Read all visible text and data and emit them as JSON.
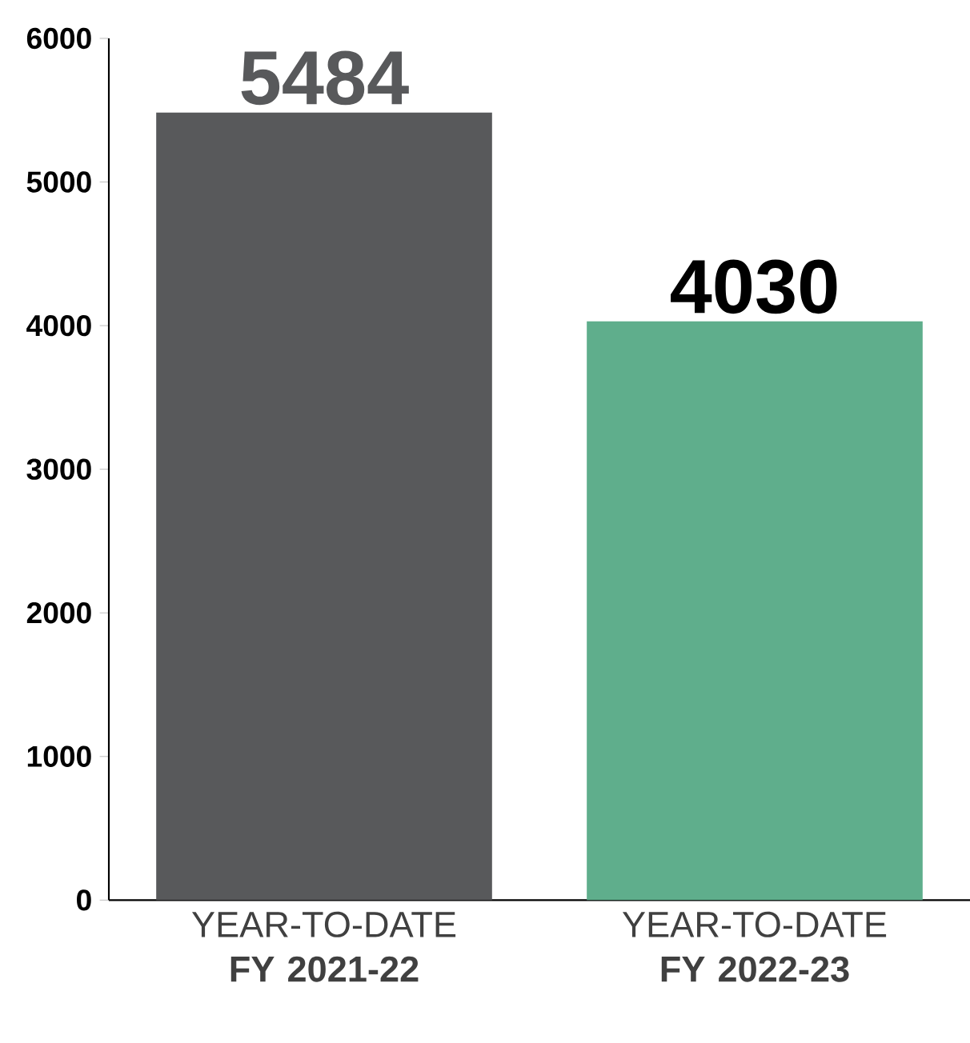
{
  "chart_data": {
    "type": "bar",
    "categories": [
      "YEAR-TO-DATE **FY 2021-22**",
      "YEAR-TO-DATE **FY 2022-23**"
    ],
    "values": [
      5484,
      4030
    ],
    "colors": [
      "#58595b",
      "#5fae8c"
    ],
    "ylim": [
      0,
      6000
    ],
    "yticks": [
      0,
      1000,
      2000,
      3000,
      4000,
      5000,
      6000
    ],
    "data_labels": true,
    "grid": false
  }
}
